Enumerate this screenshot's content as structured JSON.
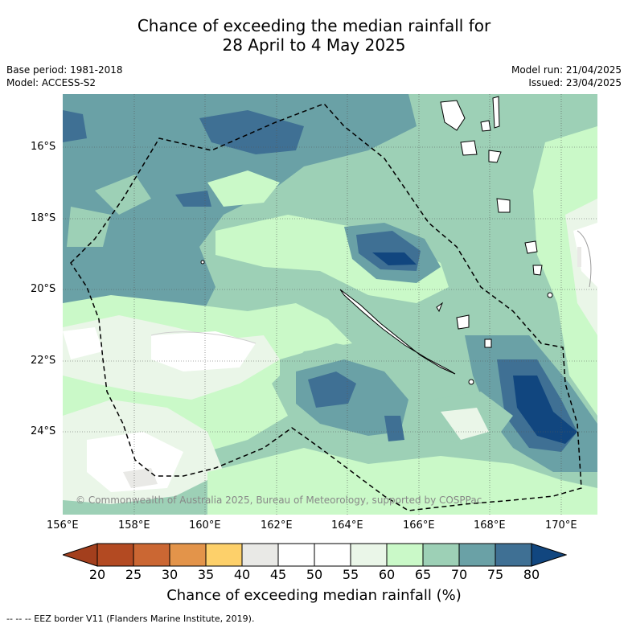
{
  "title": {
    "line1": "Chance of exceeding the median rainfall for",
    "line2": "28 April to 4 May 2025"
  },
  "meta": {
    "base_period": "Base period: 1981-2018",
    "model": "Model: ACCESS-S2",
    "model_run": "Model run: 21/04/2025",
    "issued": "Issued: 23/04/2025"
  },
  "map": {
    "lat_labels": [
      "16°S",
      "18°S",
      "20°S",
      "22°S",
      "24°S"
    ],
    "lon_labels": [
      "156°E",
      "158°E",
      "160°E",
      "162°E",
      "164°E",
      "166°E",
      "168°E",
      "170°E"
    ],
    "copyright": "© Commonwealth of Australia 2025, Bureau of Meteorology, supported by COSPPac"
  },
  "colorbar": {
    "ticks": [
      "20",
      "25",
      "30",
      "35",
      "40",
      "45",
      "50",
      "55",
      "60",
      "65",
      "70",
      "75",
      "80"
    ],
    "colors": [
      "#a33f1d",
      "#b34a22",
      "#cb6733",
      "#e3944a",
      "#fdd06a",
      "#e9e9e6",
      "#ffffff",
      "#ffffff",
      "#eaf6e8",
      "#caf9c8",
      "#9dd0b6",
      "#6aa1a6",
      "#3f7094",
      "#11467f"
    ],
    "label": "Chance of exceeding median rainfall (%)"
  },
  "footnote": "--  --  -- EEZ border V11 (Flanders Marine Institute, 2019)."
}
